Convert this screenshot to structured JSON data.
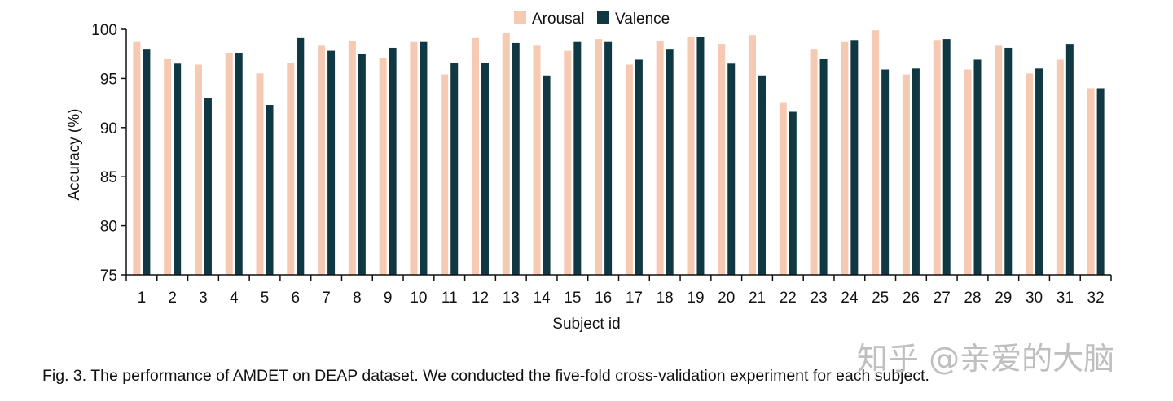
{
  "chart_data": {
    "type": "bar",
    "title": "",
    "xlabel": "Subject id",
    "ylabel": "Accuracy (%)",
    "ylim": [
      75,
      100
    ],
    "yticks": [
      75,
      80,
      85,
      90,
      95,
      100
    ],
    "legend_position": "top-center",
    "categories": [
      "1",
      "2",
      "3",
      "4",
      "5",
      "6",
      "7",
      "8",
      "9",
      "10",
      "11",
      "12",
      "13",
      "14",
      "15",
      "16",
      "17",
      "18",
      "19",
      "20",
      "21",
      "22",
      "23",
      "24",
      "25",
      "26",
      "27",
      "28",
      "29",
      "30",
      "31",
      "32"
    ],
    "series": [
      {
        "name": "Arousal",
        "color": "#f6c9b2",
        "values": [
          98.7,
          97.0,
          96.4,
          97.6,
          95.5,
          96.6,
          98.4,
          98.8,
          97.1,
          98.7,
          95.4,
          99.1,
          99.6,
          98.4,
          97.8,
          99.0,
          96.4,
          98.8,
          99.2,
          98.5,
          99.4,
          92.5,
          98.0,
          98.7,
          99.9,
          95.4,
          98.9,
          95.9,
          98.4,
          95.5,
          96.9,
          94.0
        ]
      },
      {
        "name": "Valence",
        "color": "#0f3843",
        "values": [
          98.0,
          96.5,
          93.0,
          97.6,
          92.3,
          99.1,
          97.8,
          97.5,
          98.1,
          98.7,
          96.6,
          96.6,
          98.6,
          95.3,
          98.7,
          98.7,
          96.9,
          98.0,
          99.2,
          96.5,
          95.3,
          91.6,
          97.0,
          98.9,
          95.9,
          96.0,
          99.0,
          96.9,
          98.1,
          96.0,
          98.5,
          94.0
        ]
      }
    ]
  },
  "caption": "Fig. 3. The performance of AMDET on DEAP dataset. We conducted the five-fold cross-validation experiment for each subject.",
  "watermark": "知乎 @亲爱的大脑"
}
